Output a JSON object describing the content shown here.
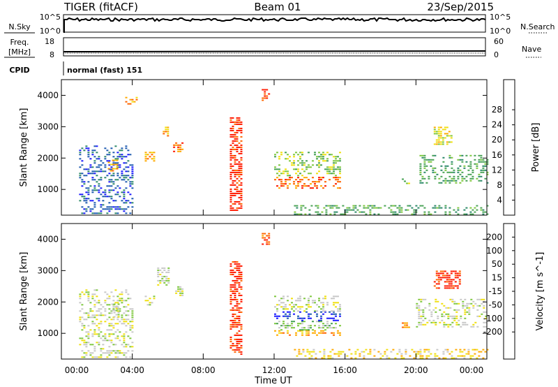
{
  "header": {
    "title": "TIGER (fitACF)",
    "beam": "Beam 01",
    "date": "23/Sep/2015"
  },
  "strips": {
    "nsky": {
      "label": "N.Sky",
      "ticks_left": [
        "10^5",
        "10^0"
      ],
      "right_label": "N.Search",
      "ticks_right": [
        "10^5",
        "10^0"
      ]
    },
    "freq": {
      "label_line1": "Freq.",
      "label_line2": "[MHz]",
      "ticks_left": [
        "18",
        "8"
      ],
      "right_label": "Nave",
      "ticks_right": [
        "60",
        "0"
      ]
    },
    "cpid": {
      "label": "CPID",
      "value": "normal (fast) 151"
    }
  },
  "x_axis": {
    "label": "Time UT",
    "ticks": [
      "00:00",
      "04:00",
      "08:00",
      "12:00",
      "16:00",
      "20:00",
      "00:00"
    ],
    "range_hours": [
      0,
      24
    ]
  },
  "chart_data": [
    {
      "type": "heatmap",
      "name": "power",
      "ylabel": "Slant Range [km]",
      "ylim": [
        180,
        4500
      ],
      "yticks": [
        1000,
        2000,
        3000,
        4000
      ],
      "colorbar_label": "Power [dB]",
      "colorbar_ticks": [
        "4",
        "8",
        "12",
        "16",
        "20",
        "24",
        "28"
      ],
      "colors": [
        "#1a1aff",
        "#1f5bb0",
        "#2e8a6a",
        "#4aa356",
        "#7fc840",
        "#f0e010",
        "#ffaa00",
        "#ff6600",
        "#ff1a00"
      ],
      "patches": [
        {
          "t": [
            1.0,
            4.0
          ],
          "r": [
            250,
            2400
          ],
          "level": 1
        },
        {
          "t": [
            2.5,
            3.2
          ],
          "r": [
            1600,
            1950
          ],
          "level": 6
        },
        {
          "t": [
            3.6,
            4.3
          ],
          "r": [
            3700,
            3950
          ],
          "level": 6
        },
        {
          "t": [
            4.7,
            5.2
          ],
          "r": [
            1900,
            2200
          ],
          "level": 6
        },
        {
          "t": [
            5.6,
            6.0
          ],
          "r": [
            2700,
            3000
          ],
          "level": 6
        },
        {
          "t": [
            6.3,
            6.8
          ],
          "r": [
            2200,
            2500
          ],
          "level": 7
        },
        {
          "t": [
            9.5,
            10.2
          ],
          "r": [
            300,
            3300
          ],
          "level": 8
        },
        {
          "t": [
            11.3,
            11.7
          ],
          "r": [
            3800,
            4200
          ],
          "level": 8
        },
        {
          "t": [
            12.0,
            15.7
          ],
          "r": [
            1000,
            1400
          ],
          "level": 7
        },
        {
          "t": [
            12.0,
            15.7
          ],
          "r": [
            1400,
            2200
          ],
          "level": 4
        },
        {
          "t": [
            19.2,
            19.6
          ],
          "r": [
            1200,
            1350
          ],
          "level": 4
        },
        {
          "t": [
            20.2,
            24.0
          ],
          "r": [
            1200,
            2100
          ],
          "level": 3
        },
        {
          "t": [
            21.0,
            22.0
          ],
          "r": [
            2400,
            3000
          ],
          "level": 5
        },
        {
          "t": [
            13.0,
            24.0
          ],
          "r": [
            200,
            500
          ],
          "level": 3
        }
      ]
    },
    {
      "type": "heatmap",
      "name": "velocity",
      "ylabel": "Slant Range [km]",
      "ylim": [
        180,
        4500
      ],
      "yticks": [
        1000,
        2000,
        3000,
        4000
      ],
      "colorbar_label": "Velocity [m s^-1]",
      "colorbar_ticks": [
        "200",
        "100",
        "50",
        "15",
        "-15",
        "-50",
        "-100",
        "-200"
      ],
      "colors": [
        "#1a1aff",
        "#1f5bb0",
        "#2e8a6a",
        "#4aa356",
        "#7fc840",
        "#c8c8c8",
        "#f0e010",
        "#ffaa00",
        "#ff6600",
        "#ff1a00"
      ],
      "patches": [
        {
          "t": [
            1.0,
            4.0
          ],
          "r": [
            250,
            2400
          ],
          "level": 5
        },
        {
          "t": [
            2.7,
            3.2
          ],
          "r": [
            1500,
            1950
          ],
          "level": 5
        },
        {
          "t": [
            4.7,
            5.2
          ],
          "r": [
            1900,
            2200
          ],
          "level": 5
        },
        {
          "t": [
            5.4,
            6.1
          ],
          "r": [
            2500,
            3100
          ],
          "level": 5
        },
        {
          "t": [
            6.3,
            6.8
          ],
          "r": [
            2200,
            2500
          ],
          "level": 5
        },
        {
          "t": [
            9.5,
            10.2
          ],
          "r": [
            300,
            3300
          ],
          "level": 9
        },
        {
          "t": [
            11.3,
            11.7
          ],
          "r": [
            3800,
            4200
          ],
          "level": 8
        },
        {
          "t": [
            12.0,
            15.7
          ],
          "r": [
            900,
            1100
          ],
          "level": 7
        },
        {
          "t": [
            12.0,
            15.7
          ],
          "r": [
            1100,
            1400
          ],
          "level": 4
        },
        {
          "t": [
            12.0,
            15.7
          ],
          "r": [
            1400,
            1700
          ],
          "level": 0
        },
        {
          "t": [
            12.0,
            15.7
          ],
          "r": [
            1700,
            2200
          ],
          "level": 5
        },
        {
          "t": [
            19.2,
            19.6
          ],
          "r": [
            1200,
            1350
          ],
          "level": 7
        },
        {
          "t": [
            20.0,
            24.0
          ],
          "r": [
            1200,
            2100
          ],
          "level": 5
        },
        {
          "t": [
            21.0,
            22.5
          ],
          "r": [
            2400,
            3000
          ],
          "level": 9
        },
        {
          "t": [
            13.0,
            24.0
          ],
          "r": [
            200,
            500
          ],
          "level": 6
        }
      ]
    }
  ]
}
